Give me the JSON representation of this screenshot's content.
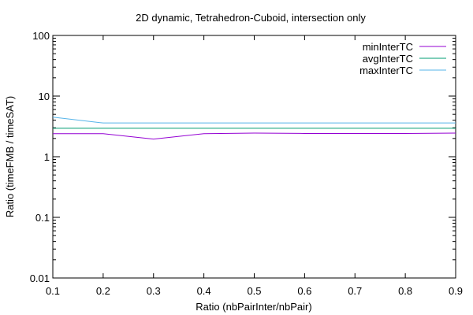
{
  "chart_data": {
    "type": "line",
    "title": "2D dynamic, Tetrahedron-Cuboid, intersection only",
    "xlabel": "Ratio (nbPairInter/nbPair)",
    "ylabel": "Ratio (timeFMB / timeSAT)",
    "xlim": [
      0.1,
      0.9
    ],
    "ylim": [
      0.01,
      100
    ],
    "yscale": "log",
    "x_ticks": [
      "0.1",
      "0.2",
      "0.3",
      "0.4",
      "0.5",
      "0.6",
      "0.7",
      "0.8",
      "0.9"
    ],
    "y_ticks": [
      "0.01",
      "0.1",
      "1",
      "10",
      "100"
    ],
    "grid": false,
    "legend_position": "top-right",
    "x": [
      0.1,
      0.2,
      0.3,
      0.4,
      0.5,
      0.6,
      0.7,
      0.8,
      0.9
    ],
    "series": [
      {
        "name": "minInterTC",
        "color": "#9400d3",
        "values": [
          2.4,
          2.4,
          1.95,
          2.4,
          2.45,
          2.42,
          2.42,
          2.42,
          2.45
        ]
      },
      {
        "name": "avgInterTC",
        "color": "#009e73",
        "values": [
          2.95,
          2.95,
          2.95,
          2.95,
          2.95,
          2.95,
          2.95,
          2.95,
          2.95
        ]
      },
      {
        "name": "maxInterTC",
        "color": "#56b4e9",
        "values": [
          4.5,
          3.6,
          3.6,
          3.6,
          3.6,
          3.6,
          3.6,
          3.6,
          3.6
        ]
      }
    ]
  }
}
